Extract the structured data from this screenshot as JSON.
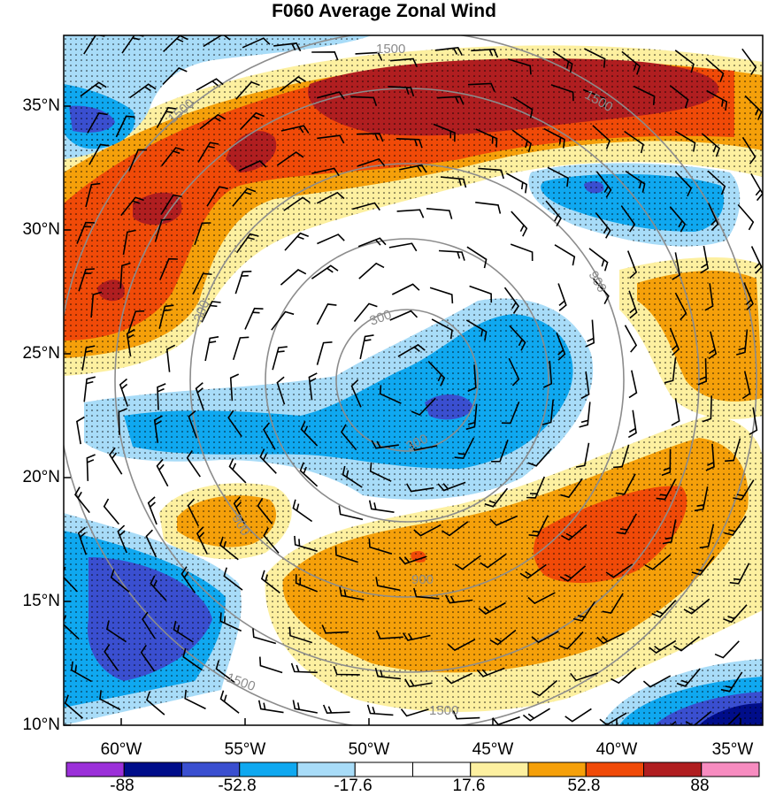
{
  "title": "F060 Average Zonal Wind",
  "map": {
    "lat_ticks": [
      {
        "value": 35,
        "label": "35°N"
      },
      {
        "value": 30,
        "label": "30°N"
      },
      {
        "value": 25,
        "label": "25°N"
      },
      {
        "value": 20,
        "label": "20°N"
      },
      {
        "value": 15,
        "label": "15°N"
      },
      {
        "value": 10,
        "label": "10°N"
      }
    ],
    "lon_ticks": [
      {
        "value": -60,
        "label": "60°W"
      },
      {
        "value": -55,
        "label": "55°W"
      },
      {
        "value": -50,
        "label": "50°W"
      },
      {
        "value": -45,
        "label": "45°W"
      },
      {
        "value": -40,
        "label": "40°W"
      },
      {
        "value": -35,
        "label": "35°W"
      }
    ],
    "lat_range": [
      10,
      37.8
    ],
    "lon_range": [
      -62.3,
      -35
    ],
    "contour_labels": [
      "1500",
      "1500",
      "1500",
      "900",
      "900",
      "900",
      "300",
      "300",
      "300",
      "1500",
      "1500"
    ]
  },
  "colorbar": {
    "labels": [
      "-88",
      "-52.8",
      "-17.6",
      "17.6",
      "52.8",
      "88"
    ],
    "colors": [
      "#9b30d9",
      "#000d8a",
      "#3a4fd0",
      "#0fa8f0",
      "#a8dcf8",
      "#ffffff",
      "#ffffff",
      "#fdf0a0",
      "#f5a00a",
      "#f04a08",
      "#b01e20",
      "#f78cc0"
    ]
  },
  "palette": {
    "dark_red": "#b01e20",
    "red_orange": "#f04a08",
    "orange": "#f5a00a",
    "light_yellow": "#fdf0a0",
    "light_blue": "#a8dcf8",
    "cyan_blue": "#0fa8f0",
    "blue": "#3a4fd0",
    "navy": "#000d8a",
    "contour_gray": "#8c8c8c"
  }
}
